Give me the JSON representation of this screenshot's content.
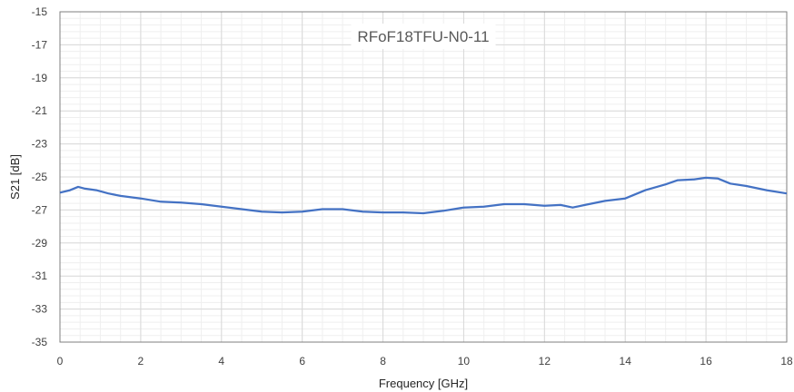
{
  "chart_data": {
    "type": "line",
    "title": "RFoF18TFU-N0-11",
    "xlabel": "Frequency [GHz]",
    "ylabel": "S21 [dB]",
    "xlim": [
      0,
      18
    ],
    "ylim": [
      -35,
      -15
    ],
    "xticks": [
      0,
      2,
      4,
      6,
      8,
      10,
      12,
      14,
      16,
      18
    ],
    "yticks": [
      -35,
      -33,
      -31,
      -29,
      -27,
      -25,
      -23,
      -21,
      -19,
      -17,
      -15
    ],
    "grid": true,
    "minor_grid": true,
    "legend": "none",
    "series": [
      {
        "color": "#4472c4",
        "points": [
          [
            0.0,
            -25.95
          ],
          [
            0.25,
            -25.8
          ],
          [
            0.45,
            -25.6
          ],
          [
            0.6,
            -25.7
          ],
          [
            0.9,
            -25.8
          ],
          [
            1.2,
            -26.0
          ],
          [
            1.5,
            -26.15
          ],
          [
            2.0,
            -26.3
          ],
          [
            2.5,
            -26.5
          ],
          [
            3.0,
            -26.55
          ],
          [
            3.5,
            -26.65
          ],
          [
            4.0,
            -26.8
          ],
          [
            4.5,
            -26.95
          ],
          [
            5.0,
            -27.1
          ],
          [
            5.5,
            -27.15
          ],
          [
            6.0,
            -27.1
          ],
          [
            6.5,
            -26.95
          ],
          [
            7.0,
            -26.95
          ],
          [
            7.5,
            -27.1
          ],
          [
            8.0,
            -27.15
          ],
          [
            8.5,
            -27.15
          ],
          [
            9.0,
            -27.2
          ],
          [
            9.5,
            -27.05
          ],
          [
            10.0,
            -26.85
          ],
          [
            10.5,
            -26.8
          ],
          [
            11.0,
            -26.65
          ],
          [
            11.5,
            -26.65
          ],
          [
            12.0,
            -26.75
          ],
          [
            12.4,
            -26.7
          ],
          [
            12.7,
            -26.85
          ],
          [
            13.0,
            -26.7
          ],
          [
            13.5,
            -26.45
          ],
          [
            14.0,
            -26.3
          ],
          [
            14.5,
            -25.8
          ],
          [
            15.0,
            -25.45
          ],
          [
            15.3,
            -25.2
          ],
          [
            15.7,
            -25.15
          ],
          [
            16.0,
            -25.05
          ],
          [
            16.3,
            -25.1
          ],
          [
            16.6,
            -25.4
          ],
          [
            17.0,
            -25.55
          ],
          [
            17.5,
            -25.8
          ],
          [
            18.0,
            -26.0
          ]
        ]
      }
    ]
  }
}
